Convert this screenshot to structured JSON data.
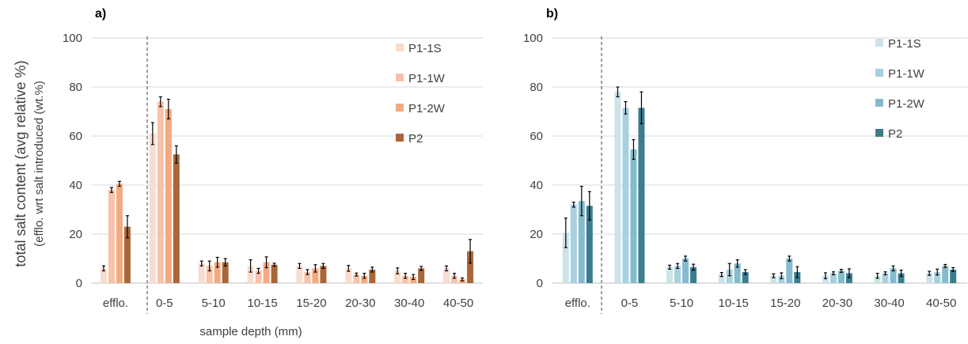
{
  "ylabel_line1": "total salt content (avg relative %)",
  "ylabel_line2": "(efflo. wrt salt introduced (wt.%)",
  "xlabel": "sample depth (mm)",
  "chart_data": [
    {
      "panel": "a)",
      "type": "bar",
      "ylim": [
        0,
        100
      ],
      "yticks": [
        0,
        20,
        40,
        60,
        80,
        100
      ],
      "grid": true,
      "legend_position": "top-right",
      "categories": [
        "efflo.",
        "0-5",
        "5-10",
        "10-15",
        "15-20",
        "20-30",
        "30-40",
        "40-50"
      ],
      "separator_after_category": "efflo.",
      "series": [
        {
          "name": "P1-1S",
          "color": "#f9dcd0",
          "values": [
            6,
            61,
            8,
            7,
            7,
            6,
            5,
            6
          ],
          "errors": [
            1,
            4.5,
            1,
            2.5,
            1,
            1.2,
            1.2,
            1
          ]
        },
        {
          "name": "P1-1W",
          "color": "#f7c2a8",
          "values": [
            38,
            74,
            7,
            5,
            4.5,
            3.5,
            3,
            3
          ],
          "errors": [
            1,
            2,
            2,
            1,
            1,
            0.6,
            1,
            1
          ]
        },
        {
          "name": "P1-2W",
          "color": "#f4a97f",
          "values": [
            40.5,
            71,
            8.5,
            8.5,
            6,
            3,
            2.5,
            1.5
          ],
          "errors": [
            1,
            4,
            2,
            2.2,
            1.5,
            1,
            1,
            0.6
          ]
        },
        {
          "name": "P2",
          "color": "#a9663a",
          "values": [
            23,
            52.5,
            8.5,
            7.5,
            7,
            5.5,
            6,
            13
          ],
          "errors": [
            4.5,
            3.5,
            1.5,
            0.6,
            1,
            1,
            0.8,
            4.8
          ]
        }
      ]
    },
    {
      "panel": "b)",
      "type": "bar",
      "ylim": [
        0,
        100
      ],
      "yticks": [
        0,
        20,
        40,
        60,
        80,
        100
      ],
      "grid": true,
      "legend_position": "top-right",
      "categories": [
        "efflo.",
        "0-5",
        "5-10",
        "10-15",
        "15-20",
        "20-30",
        "30-40",
        "40-50"
      ],
      "separator_after_category": "efflo.",
      "series": [
        {
          "name": "P1-1S",
          "color": "#cde2e9",
          "values": [
            20.5,
            78,
            6.5,
            3.5,
            3,
            3,
            3,
            4
          ],
          "errors": [
            6,
            2,
            0.8,
            0.8,
            0.8,
            1.2,
            1,
            0.8
          ]
        },
        {
          "name": "P1-1W",
          "color": "#a9d0dd",
          "values": [
            32,
            71.5,
            7,
            5.5,
            3,
            4,
            4,
            4.5
          ],
          "errors": [
            1,
            2.5,
            1,
            2.5,
            1.2,
            0.6,
            0.6,
            1.2
          ]
        },
        {
          "name": "P1-2W",
          "color": "#85bccd",
          "values": [
            33.5,
            54.5,
            10,
            8,
            10,
            5,
            6,
            7
          ],
          "errors": [
            6,
            4,
            1,
            1.5,
            1,
            0.6,
            1,
            0.6
          ]
        },
        {
          "name": "P2",
          "color": "#3b7d8f",
          "values": [
            31.5,
            71.5,
            6.5,
            4.5,
            4.5,
            4,
            4,
            5.5
          ],
          "errors": [
            5.8,
            6.5,
            1.2,
            1,
            2.2,
            1.8,
            1.3,
            0.8
          ]
        }
      ]
    }
  ]
}
